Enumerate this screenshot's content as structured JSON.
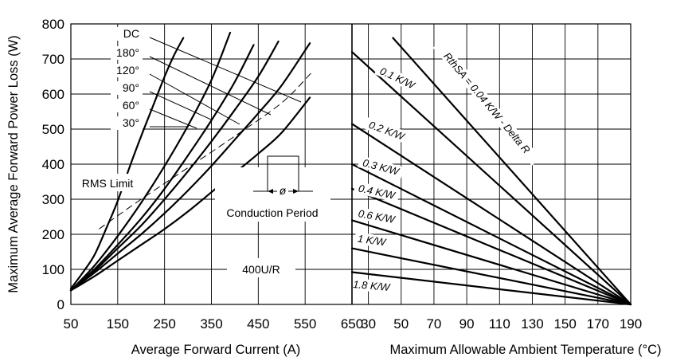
{
  "chart_data": [
    {
      "type": "line",
      "xlabel": "Average Forward Current (A)",
      "ylabel": "Maximum Average Forward Power Loss (W)",
      "xlim": [
        50,
        650
      ],
      "ylim": [
        0,
        800
      ],
      "x_ticks": [
        "50",
        "150",
        "250",
        "350",
        "450",
        "550",
        "650"
      ],
      "y_ticks": [
        "0",
        "100",
        "200",
        "300",
        "400",
        "500",
        "600",
        "700",
        "800"
      ],
      "grid": true,
      "series": [
        {
          "name": "30°",
          "x": [
            50,
            75,
            100,
            125,
            150,
            175,
            200,
            225,
            250,
            270,
            290
          ],
          "y": [
            45,
            90,
            140,
            215,
            295,
            390,
            480,
            565,
            650,
            710,
            760
          ]
        },
        {
          "name": "60°",
          "x": [
            50,
            100,
            150,
            200,
            250,
            300,
            350,
            390
          ],
          "y": [
            40,
            110,
            195,
            290,
            395,
            510,
            640,
            775
          ]
        },
        {
          "name": "90°",
          "x": [
            50,
            100,
            150,
            200,
            250,
            300,
            350,
            400,
            440
          ],
          "y": [
            40,
            100,
            170,
            245,
            330,
            425,
            525,
            635,
            740
          ]
        },
        {
          "name": "120°",
          "x": [
            50,
            100,
            150,
            200,
            250,
            300,
            350,
            400,
            450,
            493
          ],
          "y": [
            40,
            95,
            160,
            225,
            300,
            380,
            465,
            555,
            650,
            750
          ]
        },
        {
          "name": "180°",
          "x": [
            50,
            100,
            150,
            200,
            250,
            300,
            350,
            400,
            450,
            500,
            560
          ],
          "y": [
            40,
            90,
            145,
            200,
            260,
            325,
            395,
            470,
            545,
            625,
            745
          ]
        },
        {
          "name": "DC",
          "x": [
            50,
            100,
            150,
            200,
            250,
            300,
            350,
            400,
            450,
            500,
            560
          ],
          "y": [
            40,
            80,
            125,
            170,
            215,
            265,
            320,
            375,
            430,
            490,
            590
          ]
        },
        {
          "name": "RMS Limit",
          "x": [
            110,
            200,
            300,
            400,
            500,
            563
          ],
          "y": [
            215,
            300,
            390,
            480,
            575,
            660
          ]
        }
      ],
      "annotations": [
        "DC",
        "180°",
        "120°",
        "90°",
        "60°",
        "30°",
        "RMS Limit",
        "Conduction Period",
        "ø",
        "400U/R"
      ]
    },
    {
      "type": "line",
      "xlabel": "Maximum Allowable Ambient Temperature (°C)",
      "xlim": [
        20,
        190
      ],
      "ylim": [
        0,
        800
      ],
      "x_ticks": [
        "30",
        "50",
        "70",
        "90",
        "110",
        "130",
        "150",
        "170",
        "190"
      ],
      "grid": true,
      "series": [
        {
          "name": "RthSA = 0.04 K/W - Delta R",
          "x": [
            45,
            190
          ],
          "y": [
            760,
            0
          ]
        },
        {
          "name": "0.1 K/W",
          "x": [
            20,
            190
          ],
          "y": [
            720,
            0
          ]
        },
        {
          "name": "0.2 K/W",
          "x": [
            20,
            190
          ],
          "y": [
            515,
            0
          ]
        },
        {
          "name": "0.3 K/W",
          "x": [
            20,
            190
          ],
          "y": [
            400,
            0
          ]
        },
        {
          "name": "0.4 K/W",
          "x": [
            20,
            190
          ],
          "y": [
            330,
            0
          ]
        },
        {
          "name": "0.6 K/W",
          "x": [
            20,
            190
          ],
          "y": [
            240,
            0
          ]
        },
        {
          "name": "1 K/W",
          "x": [
            20,
            190
          ],
          "y": [
            160,
            0
          ]
        },
        {
          "name": "1.8 K/W",
          "x": [
            20,
            190
          ],
          "y": [
            92,
            0
          ]
        }
      ]
    }
  ]
}
